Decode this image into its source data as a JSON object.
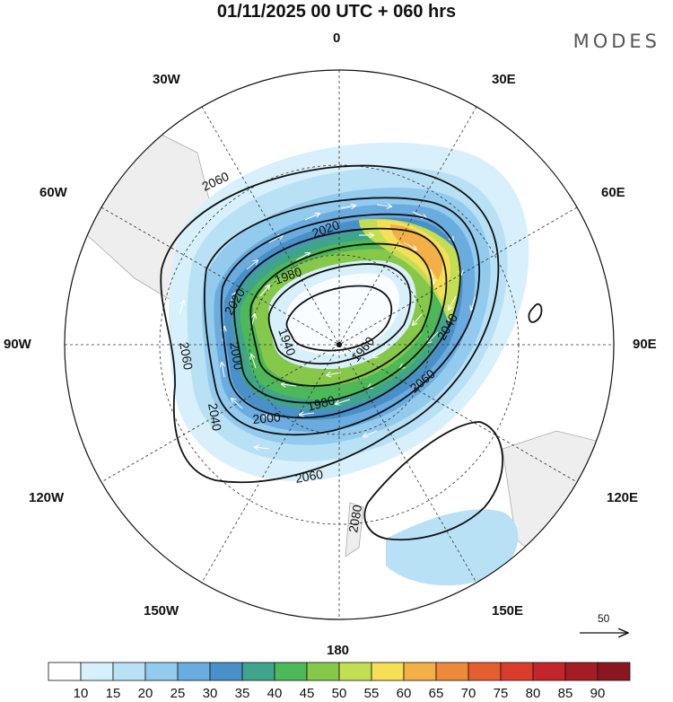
{
  "header": {
    "title": "01/11/2025  00 UTC  + 060 hrs",
    "brand": "MODES"
  },
  "longitude_labels": {
    "lon_0": "0",
    "lon_30e": "30E",
    "lon_60e": "60E",
    "lon_90e": "90E",
    "lon_120e": "120E",
    "lon_150e": "150E",
    "lon_180": "180",
    "lon_150w": "150W",
    "lon_120w": "120W",
    "lon_90w": "90W",
    "lon_60w": "60W",
    "lon_30w": "30W"
  },
  "contour_labels": {
    "c2060_nw": "2060",
    "c2020_n": "2020",
    "c1980_n": "1980",
    "c2020_w": "2020",
    "c1940_w": "1940",
    "c2000_w": "2000",
    "c1960_c": "1960",
    "c1980_s": "1980",
    "c2000_s": "2000",
    "c2060_w": "2060",
    "c2040_w": "2040",
    "c2040_e": "2040",
    "c2060_e": "2060",
    "c2060_s": "2060",
    "c2080_s": "2080"
  },
  "reference_vector": {
    "label": "50"
  },
  "colorbar": {
    "ticks": [
      "10",
      "15",
      "20",
      "25",
      "30",
      "35",
      "40",
      "45",
      "50",
      "55",
      "60",
      "65",
      "70",
      "75",
      "80",
      "85",
      "90"
    ],
    "colors": [
      "#ffffff",
      "#d7f0fb",
      "#b9e1f6",
      "#93cbee",
      "#6aace0",
      "#4a90c8",
      "#3fa48b",
      "#4cb857",
      "#86c84a",
      "#c4de53",
      "#f5df57",
      "#f2b046",
      "#ec8a3a",
      "#e45e30",
      "#d93d2a",
      "#c3262a",
      "#a51d24",
      "#8b1520"
    ]
  }
}
